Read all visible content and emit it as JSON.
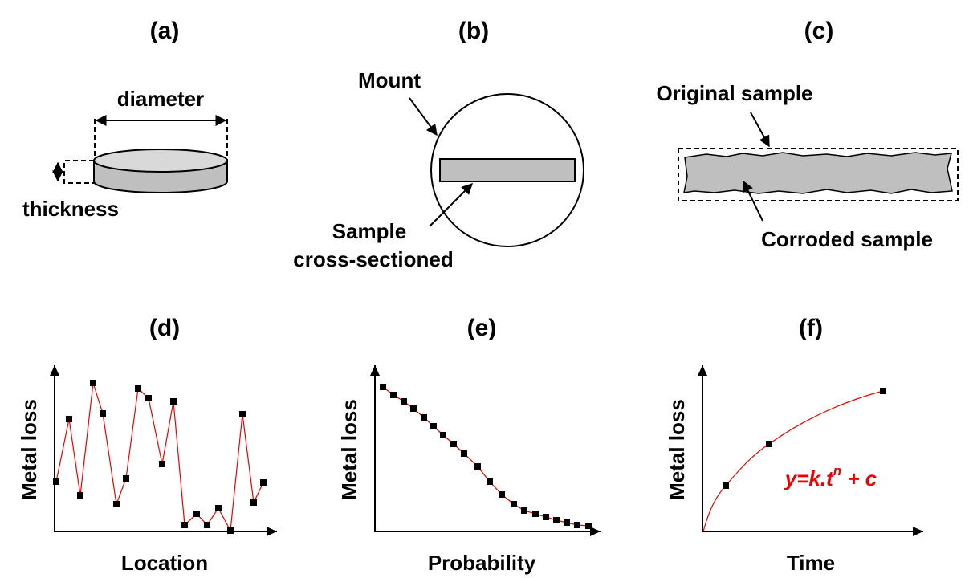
{
  "panels": {
    "a": {
      "label": "(a)",
      "diameter": "diameter",
      "thickness": "thickness"
    },
    "b": {
      "label": "(b)",
      "mount": "Mount",
      "sample_line1": "Sample",
      "sample_line2": "cross-sectioned"
    },
    "c": {
      "label": "(c)",
      "original": "Original sample",
      "corroded": "Corroded sample"
    },
    "d": {
      "label": "(d)",
      "y_label": "Metal loss",
      "x_label": "Location"
    },
    "e": {
      "label": "(e)",
      "y_label": "Metal loss",
      "x_label": "Probability"
    },
    "f": {
      "label": "(f)",
      "y_label": "Metal loss",
      "x_label": "Time",
      "formula": {
        "base": "y=k.t",
        "exponent": "n",
        "rest": " + c"
      }
    }
  }
}
